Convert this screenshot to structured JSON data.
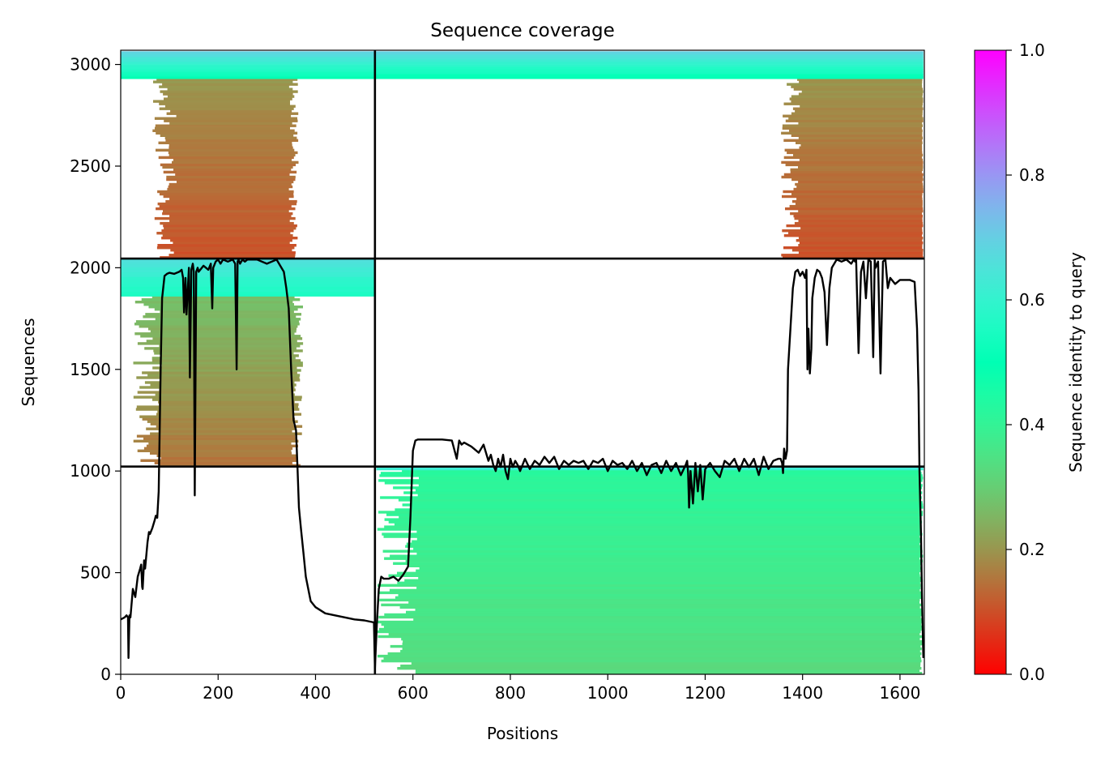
{
  "chart_data": {
    "type": "heatmap",
    "title": "Sequence coverage",
    "xlabel": "Positions",
    "ylabel": "Sequences",
    "xlim": [
      0,
      1650
    ],
    "ylim": [
      0,
      3070
    ],
    "xticks": [
      0,
      200,
      400,
      600,
      800,
      1000,
      1200,
      1400,
      1600
    ],
    "yticks": [
      0,
      500,
      1000,
      1500,
      2000,
      2500,
      3000
    ],
    "grid": false,
    "colorbar": {
      "label": "Sequence identity to query",
      "range": [
        0,
        1
      ],
      "ticks": [
        0.0,
        0.2,
        0.4,
        0.6,
        0.8,
        1.0
      ],
      "tick_labels": [
        "0.0",
        "0.2",
        "0.4",
        "0.6",
        "0.8",
        "1.0"
      ],
      "colormap": "rainbow_r"
    },
    "divider_lines": {
      "x": [
        522
      ],
      "y": [
        1022,
        2045
      ]
    },
    "blocks": [
      {
        "rows": [
          2045,
          2930
        ],
        "x_start_range": [
          65,
          115
        ],
        "x_end_range": [
          345,
          365
        ],
        "identity": [
          0.1,
          0.2
        ]
      },
      {
        "rows": [
          2930,
          3065
        ],
        "x_range": [
          0,
          522
        ],
        "identity": [
          0.5,
          0.7
        ]
      },
      {
        "rows": [
          2045,
          2930
        ],
        "x_start_range": [
          1355,
          1400
        ],
        "x_end_range": [
          1645,
          1648
        ],
        "identity": [
          0.1,
          0.2
        ]
      },
      {
        "rows": [
          2930,
          3065
        ],
        "x_range": [
          522,
          1648
        ],
        "identity": [
          0.5,
          0.7
        ]
      },
      {
        "rows": [
          1022,
          1860
        ],
        "x_start_range": [
          25,
          85
        ],
        "x_end_range": [
          350,
          375
        ],
        "identity": [
          0.15,
          0.27
        ]
      },
      {
        "rows": [
          1860,
          2045
        ],
        "x_range": [
          0,
          522
        ],
        "identity": [
          0.55,
          0.66
        ]
      },
      {
        "rows": [
          0,
          1022
        ],
        "x_start_range": [
          525,
          615
        ],
        "x_end_range": [
          1640,
          1648
        ],
        "identity": [
          0.33,
          0.42
        ]
      },
      {
        "rows": [
          1005,
          1022
        ],
        "x_range": [
          525,
          1648
        ],
        "identity": [
          0.62,
          0.7
        ]
      }
    ],
    "coverage_line": {
      "x": [
        0,
        8,
        12,
        15,
        16,
        18,
        20,
        25,
        30,
        35,
        40,
        42,
        44,
        45,
        48,
        50,
        55,
        58,
        60,
        65,
        70,
        72,
        75,
        78,
        80,
        82,
        85,
        90,
        95,
        100,
        110,
        120,
        125,
        128,
        130,
        133,
        135,
        140,
        142,
        145,
        148,
        150,
        152,
        155,
        158,
        160,
        170,
        180,
        185,
        188,
        190,
        195,
        200,
        205,
        210,
        220,
        230,
        235,
        238,
        240,
        242,
        245,
        250,
        255,
        260,
        280,
        300,
        320,
        330,
        335,
        340,
        345,
        350,
        355,
        360,
        363,
        366,
        370,
        375,
        380,
        390,
        400,
        420,
        440,
        460,
        480,
        500,
        520,
        522,
        526,
        530,
        535,
        540,
        550,
        560,
        570,
        580,
        590,
        595,
        600,
        605,
        610,
        620,
        640,
        660,
        680,
        690,
        695,
        700,
        705,
        720,
        735,
        745,
        755,
        760,
        765,
        770,
        775,
        780,
        785,
        790,
        795,
        800,
        805,
        810,
        815,
        820,
        830,
        840,
        850,
        860,
        870,
        880,
        890,
        900,
        910,
        920,
        930,
        940,
        950,
        960,
        970,
        980,
        990,
        1000,
        1010,
        1020,
        1030,
        1040,
        1050,
        1060,
        1070,
        1080,
        1090,
        1100,
        1110,
        1120,
        1130,
        1140,
        1150,
        1160,
        1163,
        1165,
        1167,
        1170,
        1175,
        1180,
        1185,
        1190,
        1195,
        1200,
        1210,
        1220,
        1230,
        1240,
        1250,
        1260,
        1270,
        1280,
        1290,
        1300,
        1310,
        1320,
        1330,
        1340,
        1350,
        1355,
        1358,
        1360,
        1362,
        1365,
        1368,
        1370,
        1375,
        1380,
        1385,
        1390,
        1395,
        1400,
        1405,
        1408,
        1410,
        1412,
        1415,
        1418,
        1420,
        1425,
        1430,
        1435,
        1440,
        1445,
        1450,
        1455,
        1460,
        1470,
        1480,
        1490,
        1500,
        1505,
        1508,
        1510,
        1515,
        1520,
        1525,
        1530,
        1535,
        1540,
        1545,
        1548,
        1550,
        1555,
        1560,
        1565,
        1570,
        1575,
        1580,
        1590,
        1600,
        1610,
        1620,
        1630,
        1635,
        1638,
        1640,
        1643,
        1645,
        1648
      ],
      "y": [
        270,
        280,
        290,
        280,
        80,
        290,
        280,
        420,
        380,
        480,
        520,
        540,
        430,
        420,
        560,
        520,
        650,
        700,
        690,
        720,
        760,
        780,
        770,
        900,
        1200,
        1500,
        1850,
        1960,
        1970,
        1975,
        1970,
        1980,
        1990,
        1950,
        1780,
        1950,
        1770,
        2000,
        1460,
        1990,
        2020,
        1980,
        880,
        1980,
        2000,
        1980,
        2010,
        1990,
        2020,
        1800,
        2000,
        2030,
        2040,
        2020,
        2040,
        2030,
        2040,
        2020,
        1500,
        2030,
        2040,
        2020,
        2040,
        2030,
        2040,
        2040,
        2020,
        2040,
        2000,
        1980,
        1900,
        1800,
        1500,
        1250,
        1200,
        1020,
        820,
        720,
        600,
        480,
        360,
        330,
        300,
        290,
        280,
        270,
        265,
        255,
        30,
        250,
        420,
        480,
        470,
        470,
        480,
        460,
        490,
        530,
        780,
        1100,
        1150,
        1155,
        1155,
        1155,
        1155,
        1150,
        1060,
        1150,
        1130,
        1140,
        1120,
        1090,
        1130,
        1050,
        1080,
        1030,
        1000,
        1060,
        1020,
        1080,
        1000,
        960,
        1060,
        1020,
        1050,
        1030,
        1000,
        1060,
        1010,
        1050,
        1030,
        1070,
        1040,
        1070,
        1010,
        1050,
        1030,
        1050,
        1040,
        1050,
        1010,
        1050,
        1040,
        1060,
        1000,
        1050,
        1030,
        1040,
        1010,
        1050,
        1000,
        1040,
        980,
        1030,
        1040,
        990,
        1050,
        1000,
        1040,
        980,
        1030,
        1050,
        990,
        820,
        1000,
        840,
        1040,
        900,
        1030,
        860,
        1010,
        1040,
        1000,
        970,
        1050,
        1030,
        1060,
        1000,
        1060,
        1020,
        1060,
        980,
        1070,
        1010,
        1050,
        1060,
        1060,
        1040,
        990,
        1110,
        1060,
        1100,
        1500,
        1700,
        1900,
        1980,
        1990,
        1960,
        1980,
        1950,
        1990,
        1500,
        1700,
        1480,
        1600,
        1850,
        1950,
        1990,
        1980,
        1950,
        1880,
        1620,
        1900,
        2000,
        2040,
        2030,
        2040,
        2020,
        2040,
        2030,
        2040,
        1580,
        1980,
        2030,
        1850,
        2040,
        2030,
        1560,
        2040,
        2000,
        2030,
        1480,
        2030,
        2040,
        1900,
        1950,
        1920,
        1940,
        1940,
        1940,
        1930,
        1700,
        1400,
        1000,
        700,
        400,
        80
      ]
    }
  }
}
